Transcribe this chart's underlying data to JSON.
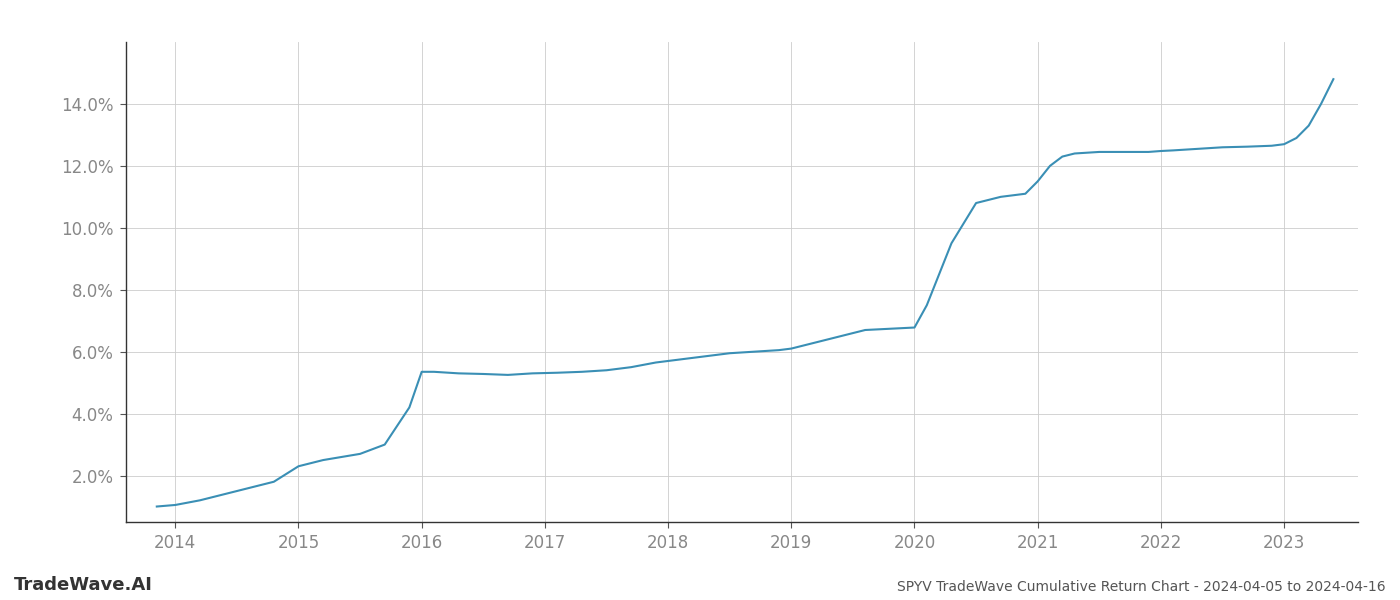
{
  "title": "SPYV TradeWave Cumulative Return Chart - 2024-04-05 to 2024-04-16",
  "watermark": "TradeWave.AI",
  "line_color": "#3a8fb5",
  "background_color": "#ffffff",
  "grid_color": "#cccccc",
  "x_values": [
    2013.85,
    2014.0,
    2014.2,
    2014.5,
    2014.8,
    2015.0,
    2015.2,
    2015.5,
    2015.7,
    2015.9,
    2016.0,
    2016.1,
    2016.3,
    2016.5,
    2016.7,
    2016.9,
    2017.1,
    2017.3,
    2017.5,
    2017.7,
    2017.9,
    2018.1,
    2018.3,
    2018.5,
    2018.7,
    2018.9,
    2019.0,
    2019.1,
    2019.2,
    2019.3,
    2019.4,
    2019.5,
    2019.55,
    2019.6,
    2019.7,
    2019.8,
    2019.9,
    2020.0,
    2020.1,
    2020.2,
    2020.3,
    2020.5,
    2020.7,
    2020.9,
    2021.0,
    2021.1,
    2021.2,
    2021.3,
    2021.5,
    2021.7,
    2021.9,
    2022.0,
    2022.1,
    2022.3,
    2022.5,
    2022.7,
    2022.9,
    2023.0,
    2023.1,
    2023.2,
    2023.3,
    2023.4
  ],
  "y_values": [
    1.0,
    1.05,
    1.2,
    1.5,
    1.8,
    2.3,
    2.5,
    2.7,
    3.0,
    4.2,
    5.35,
    5.35,
    5.3,
    5.28,
    5.25,
    5.3,
    5.32,
    5.35,
    5.4,
    5.5,
    5.65,
    5.75,
    5.85,
    5.95,
    6.0,
    6.05,
    6.1,
    6.2,
    6.3,
    6.4,
    6.5,
    6.6,
    6.65,
    6.7,
    6.72,
    6.74,
    6.76,
    6.78,
    7.5,
    8.5,
    9.5,
    10.8,
    11.0,
    11.1,
    11.5,
    12.0,
    12.3,
    12.4,
    12.45,
    12.45,
    12.45,
    12.48,
    12.5,
    12.55,
    12.6,
    12.62,
    12.65,
    12.7,
    12.9,
    13.3,
    14.0,
    14.8
  ],
  "xlim": [
    2013.6,
    2023.6
  ],
  "ylim_min": 0.5,
  "ylim_max": 16.0,
  "yticks": [
    2,
    4,
    6,
    8,
    10,
    12,
    14
  ],
  "xticks": [
    2014,
    2015,
    2016,
    2017,
    2018,
    2019,
    2020,
    2021,
    2022,
    2023
  ],
  "line_width": 1.5,
  "title_fontsize": 10,
  "tick_fontsize": 12,
  "watermark_fontsize": 13
}
